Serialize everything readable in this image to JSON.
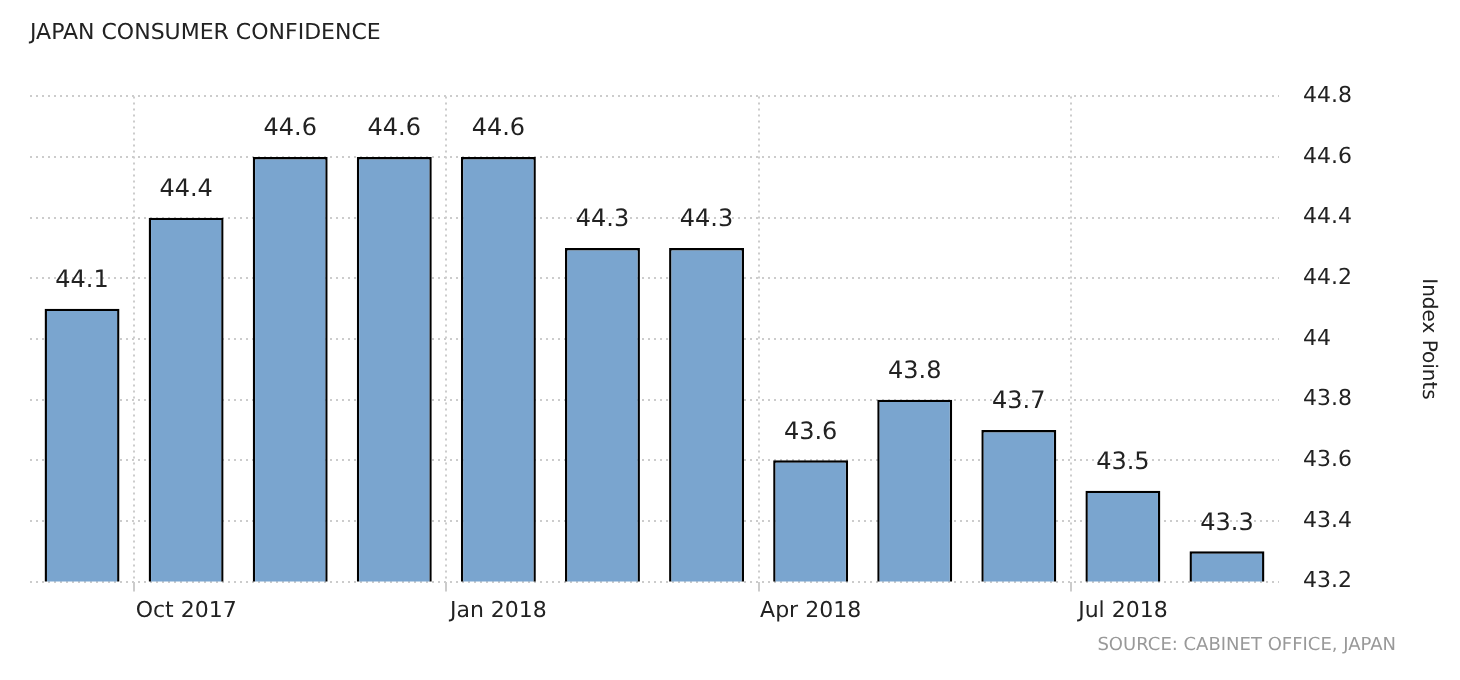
{
  "chart_data": {
    "type": "bar",
    "title": "JAPAN CONSUMER CONFIDENCE",
    "ylabel": "Index Points",
    "categories": [
      null,
      "Oct 2017",
      null,
      null,
      "Jan 2018",
      null,
      null,
      "Apr 2018",
      null,
      null,
      "Jul 2018",
      null
    ],
    "values": [
      44.1,
      44.4,
      44.6,
      44.6,
      44.6,
      44.3,
      44.3,
      43.6,
      43.8,
      43.7,
      43.5,
      43.3
    ],
    "color": "#7aa5cf",
    "ylim": [
      43.2,
      44.8
    ],
    "yticks": [
      43.2,
      43.4,
      43.6,
      43.8,
      44,
      44.2,
      44.4,
      44.6,
      44.8
    ],
    "grid": true,
    "data_labels": true,
    "annotations": [
      "SOURCE: CABINET OFFICE, JAPAN"
    ]
  }
}
